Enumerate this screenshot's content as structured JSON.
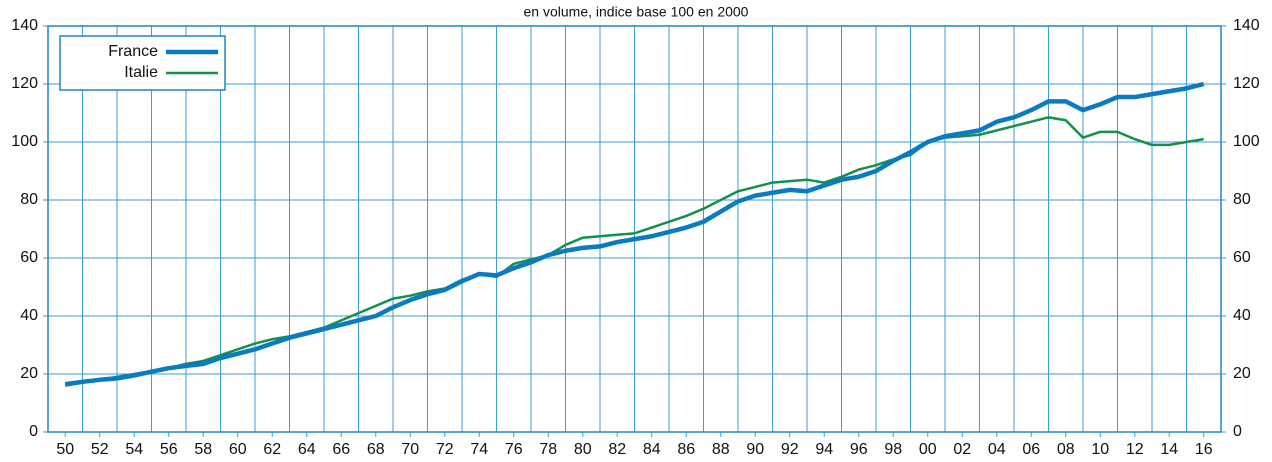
{
  "chart_data": {
    "type": "line",
    "subtitle": "en volume, indice base 100 en 2000",
    "categories": [
      "50",
      null,
      "52",
      null,
      "54",
      null,
      "56",
      null,
      "58",
      null,
      "60",
      null,
      "62",
      null,
      "64",
      null,
      "66",
      null,
      "68",
      null,
      "70",
      null,
      "72",
      null,
      "74",
      null,
      "76",
      null,
      "78",
      null,
      "80",
      null,
      "82",
      null,
      "84",
      null,
      "86",
      null,
      "88",
      null,
      "90",
      null,
      "92",
      null,
      "94",
      null,
      "96",
      null,
      "98",
      null,
      "00",
      null,
      "02",
      null,
      "04",
      null,
      "06",
      null,
      "08",
      null,
      "10",
      null,
      "12",
      null,
      "14",
      null,
      "16"
    ],
    "series": [
      {
        "name": "France",
        "color": "#0a7bc1",
        "values": [
          16.5,
          17.3,
          18,
          18.5,
          19.5,
          20.8,
          22,
          22.8,
          23.5,
          25.5,
          27,
          28.5,
          30.5,
          32.5,
          34,
          35.5,
          37,
          38.5,
          40,
          43,
          45.5,
          47.5,
          49,
          52,
          54.5,
          54,
          56.5,
          58.5,
          61,
          62.5,
          63.5,
          64,
          65.5,
          66.5,
          67.5,
          69,
          70.5,
          72.5,
          76,
          79.5,
          81.5,
          82.5,
          83.5,
          83,
          85,
          87,
          88,
          90,
          93.5,
          96.5,
          100,
          102,
          103,
          104,
          107,
          108.5,
          111,
          114,
          114,
          111,
          113,
          115.5,
          115.5,
          116.5,
          117.5,
          118.5,
          120
        ]
      },
      {
        "name": "Italie",
        "color": "#13904a",
        "values": [
          16,
          17,
          18,
          19,
          20,
          21,
          22,
          23.5,
          24.5,
          26.5,
          28.5,
          30.5,
          32,
          33,
          34.5,
          36,
          38.5,
          41,
          43.5,
          46,
          47,
          48.5,
          49.5,
          52.5,
          54.5,
          53.5,
          58,
          59.5,
          61,
          64.5,
          67,
          67.5,
          68,
          68.5,
          70.5,
          72.5,
          74.5,
          77,
          80,
          83,
          84.5,
          86,
          86.5,
          87,
          86,
          88,
          90.5,
          92,
          94,
          95.5,
          100,
          101.5,
          102,
          102.5,
          104,
          105.5,
          107,
          108.5,
          107.5,
          101.5,
          103.5,
          103.5,
          101,
          99,
          99,
          100,
          101
        ]
      }
    ],
    "ylim": [
      0,
      140
    ],
    "yticks": [
      0,
      20,
      40,
      60,
      80,
      100,
      120,
      140
    ],
    "y2lim": [
      0,
      140
    ],
    "y2ticks": [
      0,
      20,
      40,
      60,
      80,
      100,
      120,
      140
    ],
    "grid": true,
    "legend": "top-left"
  }
}
